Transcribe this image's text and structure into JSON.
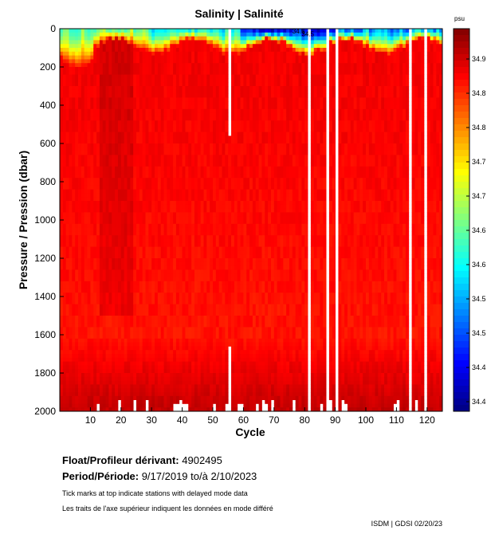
{
  "chart_data": {
    "type": "heatmap",
    "title": "Salinity | Salinité",
    "xlabel": "Cycle",
    "ylabel": "Pressure / Pression (dbar)",
    "x_range": [
      0,
      125
    ],
    "y_range": [
      0,
      2000
    ],
    "y_inverted": true,
    "x_ticks": [
      10,
      20,
      30,
      40,
      50,
      60,
      70,
      80,
      90,
      100,
      110,
      120
    ],
    "y_ticks": [
      0,
      200,
      400,
      600,
      800,
      1000,
      1200,
      1400,
      1600,
      1800,
      2000
    ],
    "colorbar": {
      "unit": "psu",
      "min": 34.35,
      "max": 34.97,
      "tick_labels": [
        "34.9",
        "34.8",
        "34.8",
        "34.7",
        "34.7",
        "34.6",
        "34.6",
        "34.5",
        "34.5",
        "34.4",
        "34.4"
      ]
    },
    "contour_labels": [
      "34.5",
      "34.5"
    ],
    "missing_profile_cycles": [
      56,
      82,
      88,
      91,
      115,
      120
    ],
    "surface_layer": {
      "fresh_salinity_min": 34.35,
      "fresh_region_cycles": [
        60,
        125
      ],
      "mixed_depth_dbar_typical": 80
    },
    "deep_salinity_psu": 34.88,
    "bottom_layer_salinity_psu": 34.93
  },
  "info": {
    "float_label": "Float/Profileur dérivant:",
    "float_value": "4902495",
    "period_label": "Period/Période:",
    "period_value": "9/17/2019  to/à  2/10/2023",
    "note_en": "Tick marks at top indicate stations with delayed mode data",
    "note_fr": "Les traits de l'axe supérieur indiquent les données en mode différé"
  },
  "credit": "ISDM | GDSI  02/20/23"
}
